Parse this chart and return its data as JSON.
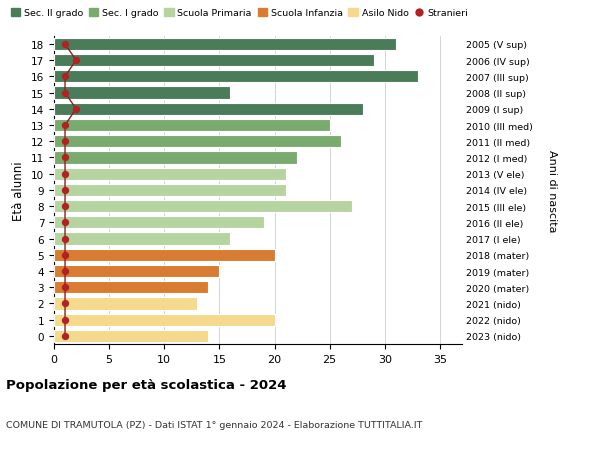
{
  "ages": [
    18,
    17,
    16,
    15,
    14,
    13,
    12,
    11,
    10,
    9,
    8,
    7,
    6,
    5,
    4,
    3,
    2,
    1,
    0
  ],
  "values": [
    31,
    29,
    33,
    16,
    28,
    25,
    26,
    22,
    21,
    21,
    27,
    19,
    16,
    20,
    15,
    14,
    13,
    20,
    14
  ],
  "stranieri": [
    1,
    2,
    1,
    1,
    2,
    1,
    1,
    1,
    1,
    1,
    1,
    1,
    1,
    1,
    1,
    1,
    1,
    1,
    1
  ],
  "bar_colors": [
    "#4a7c59",
    "#4a7c59",
    "#4a7c59",
    "#4a7c59",
    "#4a7c59",
    "#7aab6e",
    "#7aab6e",
    "#7aab6e",
    "#b6d4a0",
    "#b6d4a0",
    "#b6d4a0",
    "#b6d4a0",
    "#b6d4a0",
    "#d97b30",
    "#d97b30",
    "#d97b30",
    "#f5d98c",
    "#f5d98c",
    "#f5d98c"
  ],
  "right_labels": [
    "2005 (V sup)",
    "2006 (IV sup)",
    "2007 (III sup)",
    "2008 (II sup)",
    "2009 (I sup)",
    "2010 (III med)",
    "2011 (II med)",
    "2012 (I med)",
    "2013 (V ele)",
    "2014 (IV ele)",
    "2015 (III ele)",
    "2016 (II ele)",
    "2017 (I ele)",
    "2018 (mater)",
    "2019 (mater)",
    "2020 (mater)",
    "2021 (nido)",
    "2022 (nido)",
    "2023 (nido)"
  ],
  "legend_labels": [
    "Sec. II grado",
    "Sec. I grado",
    "Scuola Primaria",
    "Scuola Infanzia",
    "Asilo Nido",
    "Stranieri"
  ],
  "legend_colors": [
    "#4a7c59",
    "#7aab6e",
    "#b6d4a0",
    "#d97b30",
    "#f5d98c",
    "#b22222"
  ],
  "ylabel": "Età alunni",
  "right_ylabel": "Anni di nascita",
  "title": "Popolazione per età scolastica - 2024",
  "subtitle": "COMUNE DI TRAMUTOLA (PZ) - Dati ISTAT 1° gennaio 2024 - Elaborazione TUTTITALIA.IT",
  "xlim": [
    0,
    37
  ],
  "xticks": [
    0,
    5,
    10,
    15,
    20,
    25,
    30,
    35
  ],
  "dot_color": "#b22222",
  "line_color": "#8b2020",
  "background_color": "#ffffff",
  "grid_color": "#cccccc"
}
